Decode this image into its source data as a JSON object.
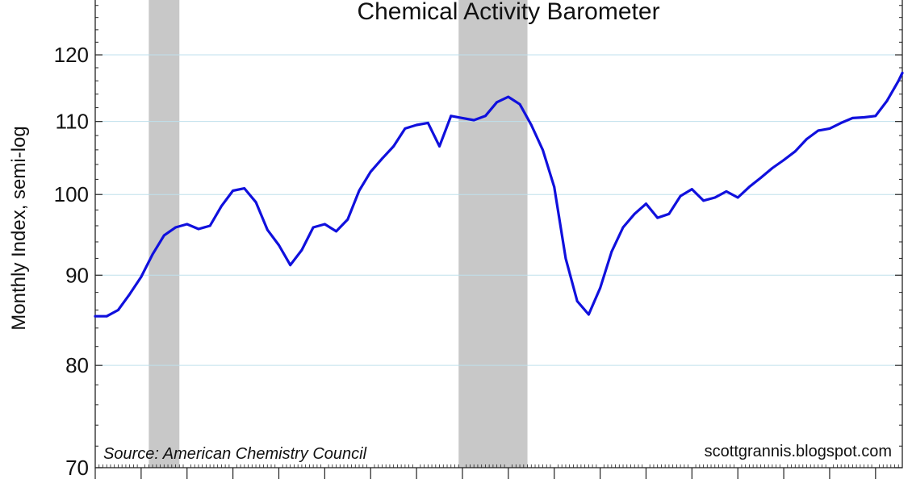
{
  "chart_data": {
    "type": "line",
    "title": "Chemical Activity Barometer",
    "ylabel": "Monthly Index, semi-log",
    "xlabel": "",
    "source_note": "Source: American Chemistry Council",
    "credit_note": "scottgrannis.blogspot.com",
    "y_scale": "log",
    "ylim": [
      70,
      130
    ],
    "yticks": [
      70,
      80,
      90,
      100,
      110,
      120
    ],
    "grid": true,
    "xlim": [
      "2000-01",
      "2017-08"
    ],
    "recessions": [
      {
        "start": "2001-03",
        "end": "2001-11"
      },
      {
        "start": "2007-12",
        "end": "2009-06"
      }
    ],
    "series": [
      {
        "color": "#1010dd",
        "x": [
          "2000-01",
          "2000-04",
          "2000-07",
          "2000-10",
          "2001-01",
          "2001-04",
          "2001-07",
          "2001-10",
          "2002-01",
          "2002-04",
          "2002-07",
          "2002-10",
          "2003-01",
          "2003-04",
          "2003-07",
          "2003-10",
          "2004-01",
          "2004-04",
          "2004-07",
          "2004-10",
          "2005-01",
          "2005-04",
          "2005-07",
          "2005-10",
          "2006-01",
          "2006-04",
          "2006-07",
          "2006-10",
          "2007-01",
          "2007-04",
          "2007-07",
          "2007-10",
          "2008-01",
          "2008-04",
          "2008-07",
          "2008-10",
          "2009-01",
          "2009-04",
          "2009-07",
          "2009-10",
          "2010-01",
          "2010-04",
          "2010-07",
          "2010-10",
          "2011-01",
          "2011-04",
          "2011-07",
          "2011-10",
          "2012-01",
          "2012-04",
          "2012-07",
          "2012-10",
          "2013-01",
          "2013-04",
          "2013-07",
          "2013-10",
          "2014-01",
          "2014-04",
          "2014-07",
          "2014-10",
          "2015-01",
          "2015-04",
          "2015-07",
          "2015-10",
          "2016-01",
          "2016-04",
          "2016-07",
          "2016-10",
          "2017-01",
          "2017-04",
          "2017-07",
          "2017-08"
        ],
        "values": [
          85.3,
          85.3,
          86.0,
          87.8,
          89.8,
          92.5,
          94.8,
          95.8,
          96.2,
          95.6,
          96.0,
          98.5,
          100.5,
          100.8,
          99.0,
          95.5,
          93.6,
          91.2,
          93.0,
          95.8,
          96.2,
          95.3,
          96.8,
          100.5,
          103.0,
          104.8,
          106.5,
          109.0,
          109.5,
          109.8,
          106.5,
          110.8,
          110.5,
          110.2,
          110.8,
          112.8,
          113.6,
          112.5,
          109.5,
          106.0,
          101.0,
          92.0,
          87.0,
          85.5,
          88.5,
          92.8,
          95.8,
          97.5,
          98.8,
          97.0,
          97.5,
          99.8,
          100.7,
          99.2,
          99.6,
          100.4,
          99.6,
          101.0,
          102.2,
          103.5,
          104.6,
          105.8,
          107.5,
          108.7,
          109.0,
          109.8,
          110.5,
          110.6,
          110.8,
          113.0,
          116.0,
          117.2
        ]
      }
    ]
  }
}
